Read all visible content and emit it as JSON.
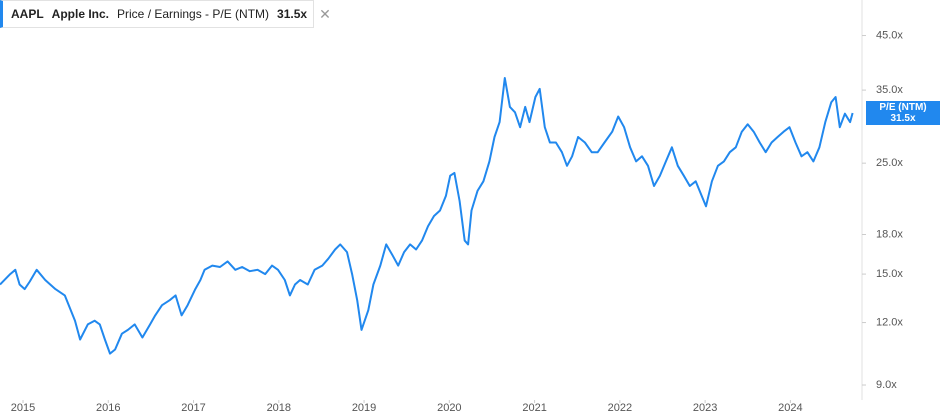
{
  "chart_data": {
    "type": "line",
    "header": {
      "ticker": "AAPL",
      "company": "Apple Inc.",
      "metric": "Price / Earnings - P/E (NTM)",
      "value": "31.5x"
    },
    "marker": {
      "name": "P/E (NTM)",
      "value": 31.5,
      "label": "31.5x"
    },
    "yscale": "log",
    "xlim": [
      2014.73,
      2024.84
    ],
    "ylim": [
      8.4,
      53
    ],
    "xticks": [
      2015,
      2016,
      2017,
      2018,
      2019,
      2020,
      2021,
      2022,
      2023,
      2024
    ],
    "yticks": [
      {
        "value": 9,
        "label": "9.0x"
      },
      {
        "value": 12,
        "label": "12.0x"
      },
      {
        "value": 15,
        "label": "15.0x"
      },
      {
        "value": 18,
        "label": "18.0x"
      },
      {
        "value": 25,
        "label": "25.0x"
      },
      {
        "value": 35,
        "label": "35.0x"
      },
      {
        "value": 45,
        "label": "45.0x"
      }
    ],
    "x": [
      2014.73,
      2014.85,
      2014.91,
      2014.96,
      2015.02,
      2015.08,
      2015.16,
      2015.26,
      2015.38,
      2015.49,
      2015.61,
      2015.67,
      2015.76,
      2015.84,
      2015.9,
      2015.96,
      2016.02,
      2016.08,
      2016.16,
      2016.23,
      2016.31,
      2016.4,
      2016.49,
      2016.55,
      2016.63,
      2016.72,
      2016.79,
      2016.86,
      2016.93,
      2017.02,
      2017.08,
      2017.13,
      2017.22,
      2017.31,
      2017.4,
      2017.49,
      2017.57,
      2017.66,
      2017.75,
      2017.84,
      2017.92,
      2017.99,
      2018.07,
      2018.13,
      2018.19,
      2018.25,
      2018.34,
      2018.42,
      2018.51,
      2018.58,
      2018.66,
      2018.72,
      2018.8,
      2018.86,
      2018.92,
      2018.97,
      2019.05,
      2019.11,
      2019.19,
      2019.26,
      2019.33,
      2019.4,
      2019.47,
      2019.54,
      2019.61,
      2019.68,
      2019.75,
      2019.82,
      2019.89,
      2019.96,
      2020.01,
      2020.06,
      2020.12,
      2020.18,
      2020.22,
      2020.26,
      2020.33,
      2020.4,
      2020.47,
      2020.53,
      2020.59,
      2020.65,
      2020.71,
      2020.77,
      2020.83,
      2020.89,
      2020.94,
      2021.01,
      2021.06,
      2021.12,
      2021.18,
      2021.25,
      2021.32,
      2021.38,
      2021.44,
      2021.51,
      2021.59,
      2021.67,
      2021.74,
      2021.82,
      2021.91,
      2021.98,
      2022.05,
      2022.12,
      2022.19,
      2022.26,
      2022.33,
      2022.4,
      2022.47,
      2022.54,
      2022.61,
      2022.68,
      2022.75,
      2022.82,
      2022.89,
      2022.96,
      2023.01,
      2023.08,
      2023.15,
      2023.22,
      2023.29,
      2023.36,
      2023.43,
      2023.5,
      2023.57,
      2023.64,
      2023.71,
      2023.78,
      2023.85,
      2023.92,
      2023.99,
      2024.06,
      2024.13,
      2024.2,
      2024.27,
      2024.34,
      2024.41,
      2024.48,
      2024.53,
      2024.58,
      2024.64,
      2024.7,
      2024.73
    ],
    "series": [
      {
        "name": "P/E (NTM)",
        "color": "#2188ee",
        "values": [
          14.3,
          15.0,
          15.3,
          14.3,
          14.0,
          14.5,
          15.3,
          14.6,
          14.0,
          13.6,
          12.1,
          11.1,
          11.9,
          12.1,
          11.9,
          11.1,
          10.4,
          10.6,
          11.4,
          11.6,
          11.9,
          11.2,
          11.9,
          12.4,
          13.0,
          13.3,
          13.6,
          12.4,
          13.0,
          14.0,
          14.6,
          15.3,
          15.6,
          15.5,
          15.9,
          15.3,
          15.5,
          15.2,
          15.3,
          15.0,
          15.6,
          15.3,
          14.6,
          13.6,
          14.3,
          14.6,
          14.3,
          15.3,
          15.6,
          16.1,
          16.8,
          17.2,
          16.6,
          15.0,
          13.3,
          11.6,
          12.7,
          14.3,
          15.6,
          17.2,
          16.4,
          15.6,
          16.6,
          17.2,
          16.8,
          17.5,
          18.7,
          19.6,
          20.1,
          21.5,
          23.6,
          23.9,
          21.0,
          17.5,
          17.2,
          20.1,
          22.0,
          23.0,
          25.2,
          28.2,
          30.2,
          37.0,
          32.4,
          31.6,
          29.5,
          32.4,
          30.2,
          33.9,
          35.2,
          29.5,
          27.5,
          27.5,
          26.3,
          24.7,
          25.8,
          28.2,
          27.5,
          26.3,
          26.3,
          27.5,
          28.9,
          31.0,
          29.5,
          26.9,
          25.2,
          25.8,
          24.7,
          22.5,
          23.6,
          25.2,
          26.9,
          24.7,
          23.6,
          22.5,
          23.0,
          21.5,
          20.5,
          23.0,
          24.7,
          25.2,
          26.3,
          26.9,
          28.9,
          29.9,
          28.9,
          27.5,
          26.3,
          27.5,
          28.2,
          28.9,
          29.5,
          27.5,
          25.8,
          26.3,
          25.2,
          26.9,
          30.2,
          33.1,
          33.9,
          29.5,
          31.4,
          30.2,
          31.5
        ]
      }
    ]
  }
}
